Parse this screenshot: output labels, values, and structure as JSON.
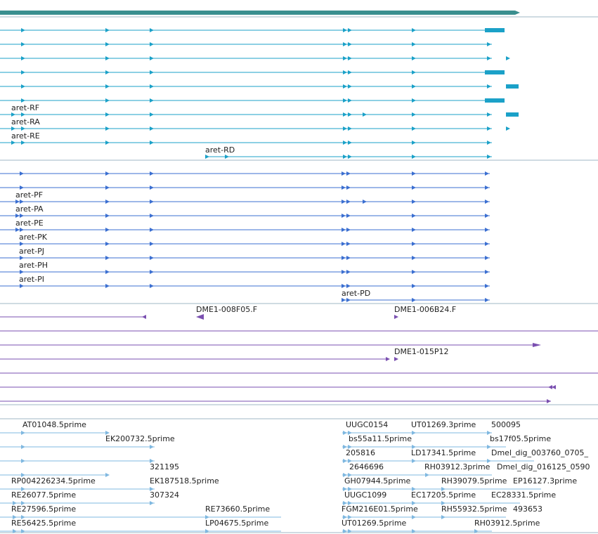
{
  "colors": {
    "gene": "#3a8f8f",
    "transcript": "#1ba1c8",
    "protein": "#3b6fd1",
    "clone": "#7a4fb0",
    "est": "#7fb8e0",
    "separator": "#9fb7c4"
  },
  "gene_track": {},
  "transcripts": {
    "labels": [
      "aret-RF",
      "aret-RA",
      "aret-RE",
      "aret-RD"
    ]
  },
  "proteins": {
    "labels": [
      "aret-PF",
      "aret-PA",
      "aret-PE",
      "aret-PK",
      "aret-PJ",
      "aret-PH",
      "aret-PI",
      "aret-PD"
    ]
  },
  "clones": {
    "labels": [
      "DME1-008F05.F",
      "DME1-006B24.F",
      "DME1-015P12"
    ]
  },
  "ests": {
    "labels": [
      "AT01048.5prime",
      "UUGC0154",
      "UT01269.3prime",
      "500095",
      "EK200732.5prime",
      "bs55a11.5prime",
      "bs17f05.5prime",
      "205816",
      "LD17341.5prime",
      "Dmel_dig_003760_0705_",
      "321195",
      "2646696",
      "RH03912.3prime",
      "Dmel_dig_016125_0590",
      "RP004226234.5prime",
      "EK187518.5prime",
      "GH07944.5prime",
      "RH39079.5prime",
      "EP16127.3prime",
      "RE26077.5prime",
      "307324",
      "UUGC1099",
      "EC17205.5prime",
      "EC28331.5prime",
      "RE27596.5prime",
      "RE73660.5prime",
      "FGM216E01.5prime",
      "RH55932.5prime",
      "493653",
      "RE56425.5prime",
      "LP04675.5prime",
      "UT01269.5prime",
      "RH03912.5prime"
    ]
  }
}
